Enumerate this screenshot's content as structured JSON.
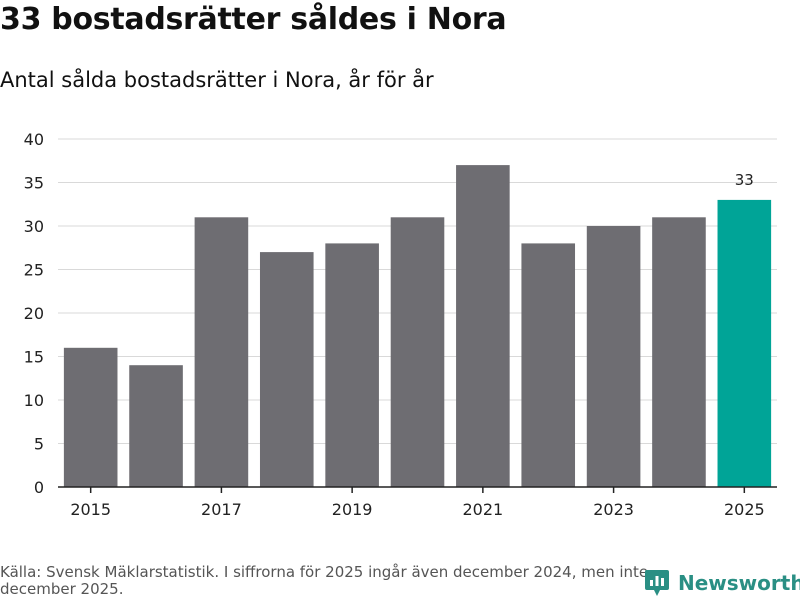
{
  "chart_data": {
    "type": "bar",
    "title": "33 bostadsrätter såldes i Nora",
    "subtitle": "Antal sålda bostadsrätter i Nora, år för år",
    "categories": [
      "2015",
      "2016",
      "2017",
      "2018",
      "2019",
      "2020",
      "2021",
      "2022",
      "2023",
      "2024",
      "2025"
    ],
    "values": [
      16,
      14,
      31,
      27,
      28,
      31,
      37,
      28,
      30,
      31,
      33
    ],
    "x_tick_labels": [
      "2015",
      "2017",
      "2019",
      "2021",
      "2023",
      "2025"
    ],
    "y_ticks": [
      0,
      5,
      10,
      15,
      20,
      25,
      30,
      35,
      40
    ],
    "ylim": [
      0,
      40
    ],
    "xlabel": "",
    "ylabel": "",
    "grid": true,
    "highlight": {
      "category": "2025",
      "label": "33"
    },
    "colors": {
      "bar": "#6e6d72",
      "highlight": "#00a497",
      "grid": "#d9d9d9",
      "axis": "#222222"
    }
  },
  "source": "Källa: Svensk Mäklarstatistik. I siffrorna för 2025 ingår även december 2024, men inte december 2025.",
  "logo": {
    "name": "Newsworthy",
    "color": "#2a8f84"
  }
}
